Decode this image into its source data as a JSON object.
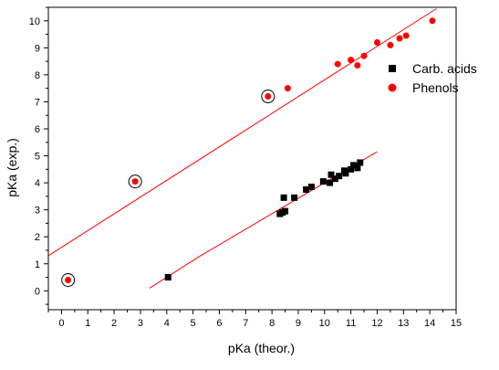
{
  "chart_data": {
    "type": "scatter",
    "xlabel": "pKa (theor.)",
    "ylabel": "pKa (exp.)",
    "xlim": [
      -0.5,
      15
    ],
    "ylim": [
      -0.7,
      10.5
    ],
    "x_ticks": [
      0,
      1,
      2,
      3,
      4,
      5,
      6,
      7,
      8,
      9,
      10,
      11,
      12,
      13,
      14,
      15
    ],
    "y_ticks": [
      0,
      1,
      2,
      3,
      4,
      5,
      6,
      7,
      8,
      9,
      10
    ],
    "legend": {
      "position": "right",
      "entries": [
        "Carb. acids",
        "Phenols"
      ]
    },
    "series": [
      {
        "name": "Carb. acids",
        "marker": "square",
        "color": "#000000",
        "points": [
          [
            4.05,
            0.5
          ],
          [
            8.3,
            2.85
          ],
          [
            8.4,
            2.9
          ],
          [
            8.5,
            2.95
          ],
          [
            8.45,
            3.45
          ],
          [
            8.85,
            3.45
          ],
          [
            9.3,
            3.75
          ],
          [
            9.5,
            3.85
          ],
          [
            9.95,
            4.05
          ],
          [
            10.2,
            4.0
          ],
          [
            10.25,
            4.3
          ],
          [
            10.4,
            4.15
          ],
          [
            10.55,
            4.25
          ],
          [
            10.8,
            4.35
          ],
          [
            10.75,
            4.45
          ],
          [
            11.0,
            4.5
          ],
          [
            11.1,
            4.65
          ],
          [
            11.25,
            4.55
          ],
          [
            11.35,
            4.75
          ]
        ],
        "fit_line": [
          [
            3.35,
            0.1
          ],
          [
            5.2,
            1.25
          ],
          [
            12.0,
            5.15
          ]
        ]
      },
      {
        "name": "Phenols",
        "marker": "circle",
        "color": "#ff0000",
        "points": [
          [
            0.25,
            0.4
          ],
          [
            2.8,
            4.05
          ],
          [
            7.85,
            7.2
          ],
          [
            8.6,
            7.5
          ],
          [
            10.5,
            8.4
          ],
          [
            11.0,
            8.55
          ],
          [
            11.25,
            8.35
          ],
          [
            11.5,
            8.7
          ],
          [
            12.0,
            9.2
          ],
          [
            12.5,
            9.1
          ],
          [
            12.85,
            9.35
          ],
          [
            13.1,
            9.45
          ],
          [
            14.1,
            10.0
          ]
        ],
        "highlighted": [
          [
            0.25,
            0.4
          ],
          [
            2.8,
            4.05
          ],
          [
            7.85,
            7.2
          ]
        ],
        "fit_line": [
          [
            -0.5,
            1.3
          ],
          [
            14.25,
            10.45
          ]
        ]
      }
    ]
  }
}
